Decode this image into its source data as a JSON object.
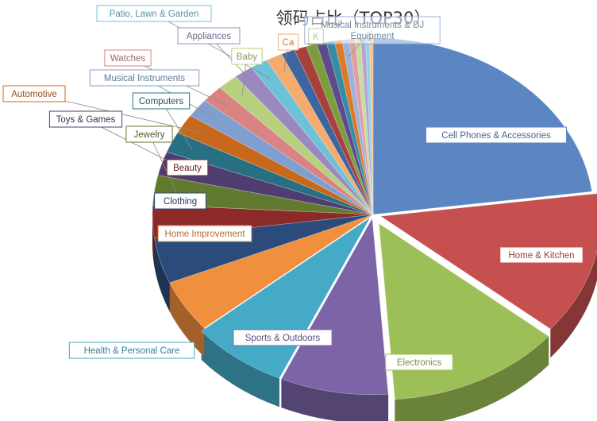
{
  "chart_data": {
    "type": "pie",
    "title": "领码占比（TOP30）",
    "slices": [
      {
        "label": "Cell Phones & Accessories",
        "value": 22.9,
        "color": "#5b86c2"
      },
      {
        "label": "Home & Kitchen",
        "value": 13.1,
        "color": "#c5504f"
      },
      {
        "label": "Electronics",
        "value": 12.8,
        "color": "#9dbf57"
      },
      {
        "label": "Sports & Outdoors",
        "value": 7.9,
        "color": "#7c64a7"
      },
      {
        "label": "Health & Personal Care",
        "value": 7.1,
        "color": "#44aac5"
      },
      {
        "label": "Home Improvement",
        "value": 4.8,
        "color": "#f08f3d"
      },
      {
        "label": "Clothing",
        "value": 4.2,
        "color": "#2b4c7b"
      },
      {
        "label": "Beauty",
        "value": 3.0,
        "color": "#8c2a29"
      },
      {
        "label": "Jewelry",
        "value": 2.7,
        "color": "#627a30"
      },
      {
        "label": "Toys & Games",
        "value": 2.2,
        "color": "#4f3d72"
      },
      {
        "label": "Computers",
        "value": 1.9,
        "color": "#276f82"
      },
      {
        "label": "Automotive",
        "value": 1.8,
        "color": "#c8681d"
      },
      {
        "label": "Musical Instruments",
        "value": 1.7,
        "color": "#7f9fd1"
      },
      {
        "label": "Watches",
        "value": 1.6,
        "color": "#d98382"
      },
      {
        "label": "Baby",
        "value": 1.5,
        "color": "#b6d07e"
      },
      {
        "label": "Appliances",
        "value": 1.4,
        "color": "#9c88c1"
      },
      {
        "label": "Patio, Lawn & Garden",
        "value": 1.3,
        "color": "#6ec2d8"
      },
      {
        "label": "Ca",
        "value": 1.2,
        "color": "#f5ab6d"
      },
      {
        "label": "",
        "value": 1.0,
        "color": "#3d66a0"
      },
      {
        "label": "",
        "value": 0.9,
        "color": "#a8403e"
      },
      {
        "label": "K",
        "value": 0.8,
        "color": "#7a9e3c"
      },
      {
        "label": "",
        "value": 0.7,
        "color": "#5e4a8c"
      },
      {
        "label": "",
        "value": 0.6,
        "color": "#338da5"
      },
      {
        "label": "",
        "value": 0.55,
        "color": "#dd7a2a"
      },
      {
        "label": "Musical Instruments & DJ Equipment",
        "value": 0.5,
        "color": "#9ab2dc"
      },
      {
        "label": "",
        "value": 0.45,
        "color": "#e0a09f"
      },
      {
        "label": "",
        "value": 0.4,
        "color": "#c7dca1"
      },
      {
        "label": "",
        "value": 0.35,
        "color": "#b3a5d1"
      },
      {
        "label": "",
        "value": 0.3,
        "color": "#93d2e3"
      },
      {
        "label": "",
        "value": 0.25,
        "color": "#f7c092"
      }
    ],
    "legend": "none",
    "style": "3d-exploded-pie"
  }
}
